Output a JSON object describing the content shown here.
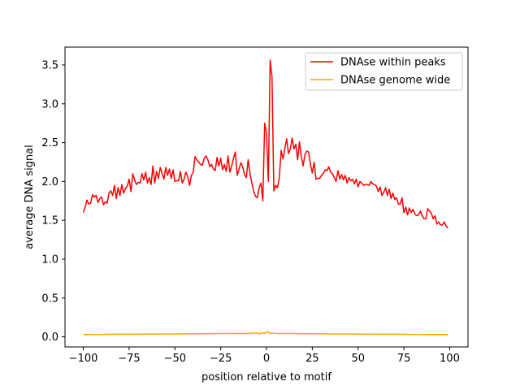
{
  "chart_data": {
    "type": "line",
    "title": "",
    "xlabel": "position relative to motif",
    "ylabel": "average DNA signal",
    "xlim": [
      -110,
      110
    ],
    "ylim": [
      -0.13,
      3.73
    ],
    "xticks": [
      -100,
      -75,
      -50,
      -25,
      0,
      25,
      50,
      75,
      100
    ],
    "xtick_labels": [
      "−100",
      "−75",
      "−50",
      "−25",
      "0",
      "25",
      "50",
      "75",
      "100"
    ],
    "yticks": [
      0.0,
      0.5,
      1.0,
      1.5,
      2.0,
      2.5,
      3.0,
      3.5
    ],
    "ytick_labels": [
      "0.0",
      "0.5",
      "1.0",
      "1.5",
      "2.0",
      "2.5",
      "3.0",
      "3.5"
    ],
    "grid": false,
    "legend_position": "top-right",
    "series": [
      {
        "name": "DNAse within peaks",
        "color": "#ff0000",
        "x": [
          -100,
          -99,
          -98,
          -97,
          -96,
          -95,
          -94,
          -93,
          -92,
          -91,
          -90,
          -89,
          -88,
          -87,
          -86,
          -85,
          -84,
          -83,
          -82,
          -81,
          -80,
          -79,
          -78,
          -77,
          -76,
          -75,
          -74,
          -73,
          -72,
          -71,
          -70,
          -69,
          -68,
          -67,
          -66,
          -65,
          -64,
          -63,
          -62,
          -61,
          -60,
          -59,
          -58,
          -57,
          -56,
          -55,
          -54,
          -53,
          -52,
          -51,
          -50,
          -49,
          -48,
          -47,
          -46,
          -45,
          -44,
          -43,
          -42,
          -41,
          -40,
          -39,
          -38,
          -37,
          -36,
          -35,
          -34,
          -33,
          -32,
          -31,
          -30,
          -29,
          -28,
          -27,
          -26,
          -25,
          -24,
          -23,
          -22,
          -21,
          -20,
          -19,
          -18,
          -17,
          -16,
          -15,
          -14,
          -13,
          -12,
          -11,
          -10,
          -9,
          -8,
          -7,
          -6,
          -5,
          -4,
          -3,
          -2,
          -1,
          0,
          1,
          2,
          3,
          4,
          5,
          6,
          7,
          8,
          9,
          10,
          11,
          12,
          13,
          14,
          15,
          16,
          17,
          18,
          19,
          20,
          21,
          22,
          23,
          24,
          25,
          26,
          27,
          28,
          29,
          30,
          31,
          32,
          33,
          34,
          35,
          36,
          37,
          38,
          39,
          40,
          41,
          42,
          43,
          44,
          45,
          46,
          47,
          48,
          49,
          50,
          51,
          52,
          53,
          54,
          55,
          56,
          57,
          58,
          59,
          60,
          61,
          62,
          63,
          64,
          65,
          66,
          67,
          68,
          69,
          70,
          71,
          72,
          73,
          74,
          75,
          76,
          77,
          78,
          79,
          80,
          81,
          82,
          83,
          84,
          85,
          86,
          87,
          88,
          89,
          90,
          91,
          92,
          93,
          94,
          95,
          96,
          97,
          98,
          99
        ],
        "values": [
          1.6,
          1.67,
          1.76,
          1.71,
          1.72,
          1.83,
          1.8,
          1.82,
          1.73,
          1.78,
          1.8,
          1.7,
          1.74,
          1.72,
          1.85,
          1.88,
          1.82,
          1.95,
          1.78,
          1.92,
          1.82,
          1.96,
          1.85,
          1.91,
          1.94,
          2.03,
          1.87,
          2.1,
          2.02,
          1.96,
          1.99,
          1.98,
          2.1,
          2.02,
          2.12,
          1.98,
          2.05,
          1.96,
          2.2,
          1.98,
          2.13,
          2.04,
          2.18,
          2.1,
          2.03,
          2.18,
          2.08,
          2.16,
          2.04,
          2.15,
          2.0,
          2.01,
          2.01,
          2.13,
          1.98,
          2.03,
          2.12,
          2.06,
          1.95,
          2.08,
          2.12,
          2.32,
          2.28,
          2.25,
          2.22,
          2.21,
          2.3,
          2.33,
          2.28,
          2.19,
          2.22,
          2.16,
          2.14,
          2.31,
          2.2,
          2.3,
          2.15,
          2.22,
          2.13,
          2.33,
          2.12,
          2.2,
          2.3,
          2.38,
          2.08,
          2.16,
          2.24,
          2.19,
          2.09,
          2.05,
          2.28,
          2.1,
          1.98,
          1.87,
          1.81,
          1.79,
          1.92,
          1.98,
          1.75,
          2.75,
          2.62,
          2.0,
          3.56,
          3.35,
          1.88,
          1.95,
          1.92,
          2.05,
          2.4,
          2.29,
          2.42,
          2.55,
          2.36,
          2.42,
          2.56,
          2.42,
          2.48,
          2.28,
          2.51,
          2.32,
          2.2,
          2.35,
          2.39,
          2.38,
          2.22,
          2.11,
          2.25,
          2.03,
          2.04,
          2.04,
          2.08,
          2.1,
          2.15,
          2.14,
          2.19,
          2.12,
          2.1,
          2.05,
          2.0,
          2.14,
          2.03,
          2.09,
          2.02,
          2.08,
          1.98,
          2.05,
          2.01,
          2.03,
          1.97,
          2.03,
          1.93,
          2.0,
          1.98,
          1.95,
          1.96,
          1.96,
          1.95,
          2.0,
          1.97,
          1.96,
          1.94,
          1.87,
          1.93,
          1.82,
          1.86,
          1.92,
          1.82,
          1.9,
          1.78,
          1.85,
          1.77,
          1.79,
          1.71,
          1.71,
          1.79,
          1.6,
          1.67,
          1.57,
          1.66,
          1.6,
          1.64,
          1.58,
          1.56,
          1.57,
          1.62,
          1.56,
          1.52,
          1.52,
          1.65,
          1.62,
          1.59,
          1.52,
          1.56,
          1.45,
          1.48,
          1.44,
          1.44,
          1.48,
          1.43,
          1.4
        ]
      },
      {
        "name": "DNAse genome wide",
        "color": "#ffa500",
        "x": [
          -100,
          -95,
          -90,
          -85,
          -80,
          -75,
          -70,
          -65,
          -60,
          -55,
          -50,
          -45,
          -40,
          -35,
          -30,
          -25,
          -20,
          -15,
          -10,
          -5,
          -4,
          -3,
          -2,
          -1,
          0,
          1,
          2,
          3,
          4,
          5,
          10,
          15,
          20,
          25,
          30,
          35,
          40,
          45,
          50,
          55,
          60,
          65,
          70,
          75,
          80,
          85,
          90,
          95,
          99
        ],
        "values": [
          0.03,
          0.031,
          0.031,
          0.032,
          0.033,
          0.034,
          0.035,
          0.036,
          0.036,
          0.037,
          0.038,
          0.039,
          0.039,
          0.04,
          0.041,
          0.042,
          0.043,
          0.044,
          0.042,
          0.05,
          0.035,
          0.048,
          0.052,
          0.045,
          0.062,
          0.06,
          0.042,
          0.05,
          0.046,
          0.044,
          0.043,
          0.042,
          0.041,
          0.04,
          0.039,
          0.038,
          0.037,
          0.037,
          0.036,
          0.035,
          0.034,
          0.034,
          0.033,
          0.032,
          0.031,
          0.031,
          0.03,
          0.03,
          0.029
        ]
      }
    ]
  }
}
